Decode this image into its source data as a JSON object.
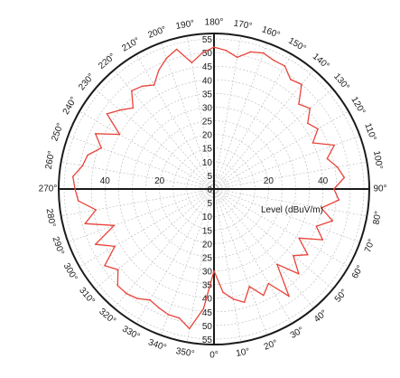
{
  "chart_data": {
    "type": "polar-line",
    "r_axis_label": "Level (dBuV/m)",
    "r_range": [
      0,
      57
    ],
    "r_ticks_vertical": [
      "0",
      "5",
      "10",
      "15",
      "20",
      "25",
      "30",
      "35",
      "40",
      "45",
      "50",
      "55"
    ],
    "r_ticks_horizontal": [
      "40",
      "20",
      "20",
      "40"
    ],
    "angle_labels": [
      "0°",
      "10°",
      "20°",
      "30°",
      "40°",
      "50°",
      "60°",
      "70°",
      "80°",
      "90°",
      "100°",
      "110°",
      "120°",
      "130°",
      "140°",
      "150°",
      "160°",
      "170°",
      "180°",
      "190°",
      "200°",
      "210°",
      "220°",
      "230°",
      "240°",
      "250°",
      "260°",
      "270°",
      "280°",
      "290°",
      "300°",
      "310°",
      "320°",
      "330°",
      "340°",
      "350°"
    ],
    "grid": true,
    "series": [
      {
        "color": "#e8443a",
        "angles": [
          0,
          5,
          10,
          15,
          20,
          25,
          30,
          35,
          40,
          45,
          50,
          55,
          60,
          65,
          70,
          75,
          80,
          85,
          90,
          95,
          100,
          105,
          110,
          115,
          120,
          125,
          130,
          135,
          140,
          145,
          150,
          155,
          160,
          165,
          170,
          175,
          180,
          185,
          190,
          195,
          200,
          205,
          210,
          215,
          220,
          225,
          230,
          235,
          240,
          245,
          250,
          255,
          260,
          265,
          270,
          275,
          280,
          285,
          290,
          295,
          300,
          305,
          310,
          315,
          320,
          325,
          330,
          335,
          340,
          345,
          350,
          355
        ],
        "values": [
          30,
          38,
          41,
          43,
          38,
          43,
          40,
          48,
          36,
          44,
          38,
          42,
          36,
          44,
          40,
          45,
          40,
          46,
          44,
          48,
          46,
          43,
          47,
          40,
          44,
          42,
          46,
          44,
          50,
          49,
          52,
          52,
          53,
          52,
          49,
          51,
          52,
          50,
          47,
          53,
          51,
          48,
          44,
          46,
          47,
          42,
          45,
          48,
          40,
          48,
          44,
          48,
          49,
          52,
          51,
          50,
          44,
          49,
          39,
          48,
          42,
          49,
          46,
          50,
          50,
          49,
          47,
          48,
          49,
          49,
          52,
          44
        ]
      }
    ]
  }
}
